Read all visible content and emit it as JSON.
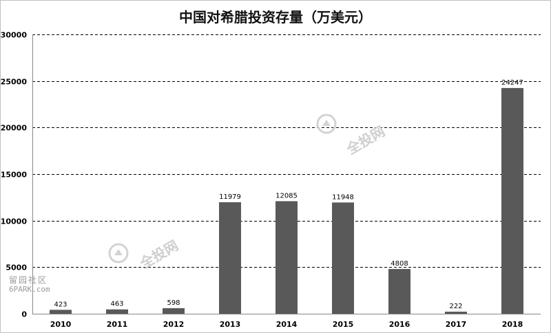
{
  "chart_data": {
    "type": "bar",
    "title": "中国对希腊投资存量（万美元）",
    "xlabel": "",
    "ylabel": "",
    "categories": [
      "2010",
      "2011",
      "2012",
      "2013",
      "2014",
      "2015",
      "2016",
      "2017",
      "2018"
    ],
    "values": [
      423,
      463,
      598,
      11979,
      12085,
      11948,
      4808,
      222,
      24247
    ],
    "ylim": [
      0,
      30000
    ],
    "yticks": [
      0,
      5000,
      10000,
      15000,
      20000,
      25000,
      30000
    ],
    "grid": true,
    "grid_style": "dashed",
    "legend": "none",
    "data_labels": true,
    "colors": {
      "bar": "#595959",
      "grid": "#000000",
      "axis": "#868686"
    }
  },
  "watermarks": {
    "logo_text": "全投网",
    "corner_line1": "留园社区",
    "corner_line2": "6PARK.com"
  }
}
